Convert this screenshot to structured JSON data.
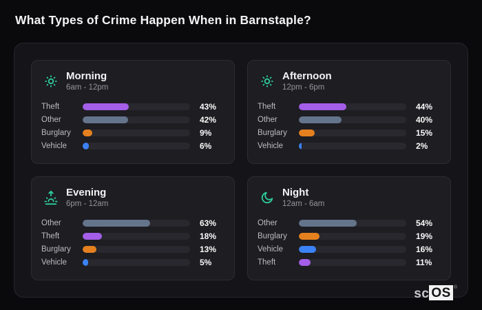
{
  "page": {
    "title": "What Types of Crime Happen When in Barnstaple?",
    "brand": {
      "prefix": "sc",
      "suffix": "OS",
      "mark": "®"
    }
  },
  "colors": {
    "theft": "#a45ee8",
    "other": "#64748b",
    "burglary": "#e5801f",
    "vehicle": "#3b82f6",
    "icon_accent": "#2ecc9d",
    "bar_track": "#28282e",
    "panel_bg": "#1d1d22",
    "container_bg": "#151519",
    "page_bg": "#0a0a0d"
  },
  "chart_data": [
    {
      "type": "bar",
      "orientation": "horizontal",
      "title": "Morning",
      "subtitle": "6am - 12pm",
      "icon": "sun-icon",
      "xlim": [
        0,
        100
      ],
      "unit": "%",
      "categories": [
        "Theft",
        "Other",
        "Burglary",
        "Vehicle"
      ],
      "values": [
        43,
        42,
        9,
        6
      ],
      "display_values": [
        "43%",
        "42%",
        "9%",
        "6%"
      ],
      "bar_colors": [
        "#a45ee8",
        "#64748b",
        "#e5801f",
        "#3b82f6"
      ]
    },
    {
      "type": "bar",
      "orientation": "horizontal",
      "title": "Afternoon",
      "subtitle": "12pm - 6pm",
      "icon": "sun-icon",
      "xlim": [
        0,
        100
      ],
      "unit": "%",
      "categories": [
        "Theft",
        "Other",
        "Burglary",
        "Vehicle"
      ],
      "values": [
        44,
        40,
        15,
        2
      ],
      "display_values": [
        "44%",
        "40%",
        "15%",
        "2%"
      ],
      "bar_colors": [
        "#a45ee8",
        "#64748b",
        "#e5801f",
        "#3b82f6"
      ]
    },
    {
      "type": "bar",
      "orientation": "horizontal",
      "title": "Evening",
      "subtitle": "6pm - 12am",
      "icon": "sunrise-icon",
      "xlim": [
        0,
        100
      ],
      "unit": "%",
      "categories": [
        "Other",
        "Theft",
        "Burglary",
        "Vehicle"
      ],
      "values": [
        63,
        18,
        13,
        5
      ],
      "display_values": [
        "63%",
        "18%",
        "13%",
        "5%"
      ],
      "bar_colors": [
        "#64748b",
        "#a45ee8",
        "#e5801f",
        "#3b82f6"
      ]
    },
    {
      "type": "bar",
      "orientation": "horizontal",
      "title": "Night",
      "subtitle": "12am - 6am",
      "icon": "moon-icon",
      "xlim": [
        0,
        100
      ],
      "unit": "%",
      "categories": [
        "Other",
        "Burglary",
        "Vehicle",
        "Theft"
      ],
      "values": [
        54,
        19,
        16,
        11
      ],
      "display_values": [
        "54%",
        "19%",
        "16%",
        "11%"
      ],
      "bar_colors": [
        "#64748b",
        "#e5801f",
        "#3b82f6",
        "#a45ee8"
      ]
    }
  ]
}
